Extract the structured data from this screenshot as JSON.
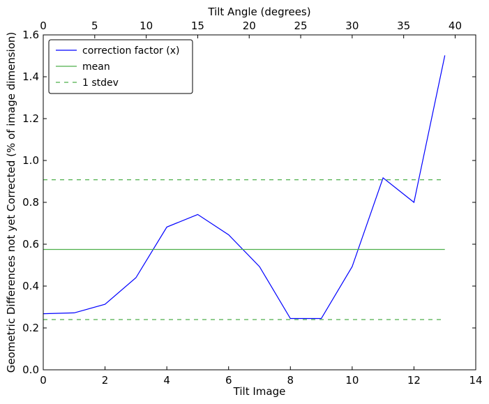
{
  "chart_data": {
    "type": "line",
    "title": "",
    "xlabel": "Tilt Image",
    "ylabel": "Geometric Differences not yet Corrected (% of image dimension)",
    "top_xlabel": "Tilt Angle (degrees)",
    "xlim": [
      0,
      14
    ],
    "ylim": [
      0,
      1.6
    ],
    "top_xlim": [
      0,
      42
    ],
    "xticks": [
      "0",
      "2",
      "4",
      "6",
      "8",
      "10",
      "12",
      "14"
    ],
    "yticks": [
      "0.0",
      "0.2",
      "0.4",
      "0.6",
      "0.8",
      "1.0",
      "1.2",
      "1.4",
      "1.6"
    ],
    "top_xticks": [
      "0",
      "5",
      "10",
      "15",
      "20",
      "25",
      "30",
      "35",
      "40"
    ],
    "grid": false,
    "legend_position": "top-left",
    "series": [
      {
        "name": "correction factor (x)",
        "style": "solid",
        "color": "#0000ff",
        "x": [
          0,
          1,
          2,
          3,
          4,
          5,
          6,
          7,
          8,
          9,
          10,
          11,
          12,
          13
        ],
        "values": [
          0.268,
          0.272,
          0.313,
          0.44,
          0.682,
          0.742,
          0.645,
          0.493,
          0.245,
          0.245,
          0.493,
          0.917,
          0.8,
          1.502
        ]
      },
      {
        "name": "mean",
        "style": "solid",
        "color": "#4daf4a",
        "x": [
          0,
          13
        ],
        "values": [
          0.575,
          0.575
        ]
      },
      {
        "name": "1 stdev",
        "style": "dashed",
        "color": "#4daf4a",
        "x": [
          0,
          13
        ],
        "values": [
          0.908,
          0.908
        ]
      },
      {
        "name": "",
        "style": "dashed",
        "color": "#4daf4a",
        "x": [
          0,
          13
        ],
        "values": [
          0.24,
          0.24
        ]
      }
    ]
  }
}
